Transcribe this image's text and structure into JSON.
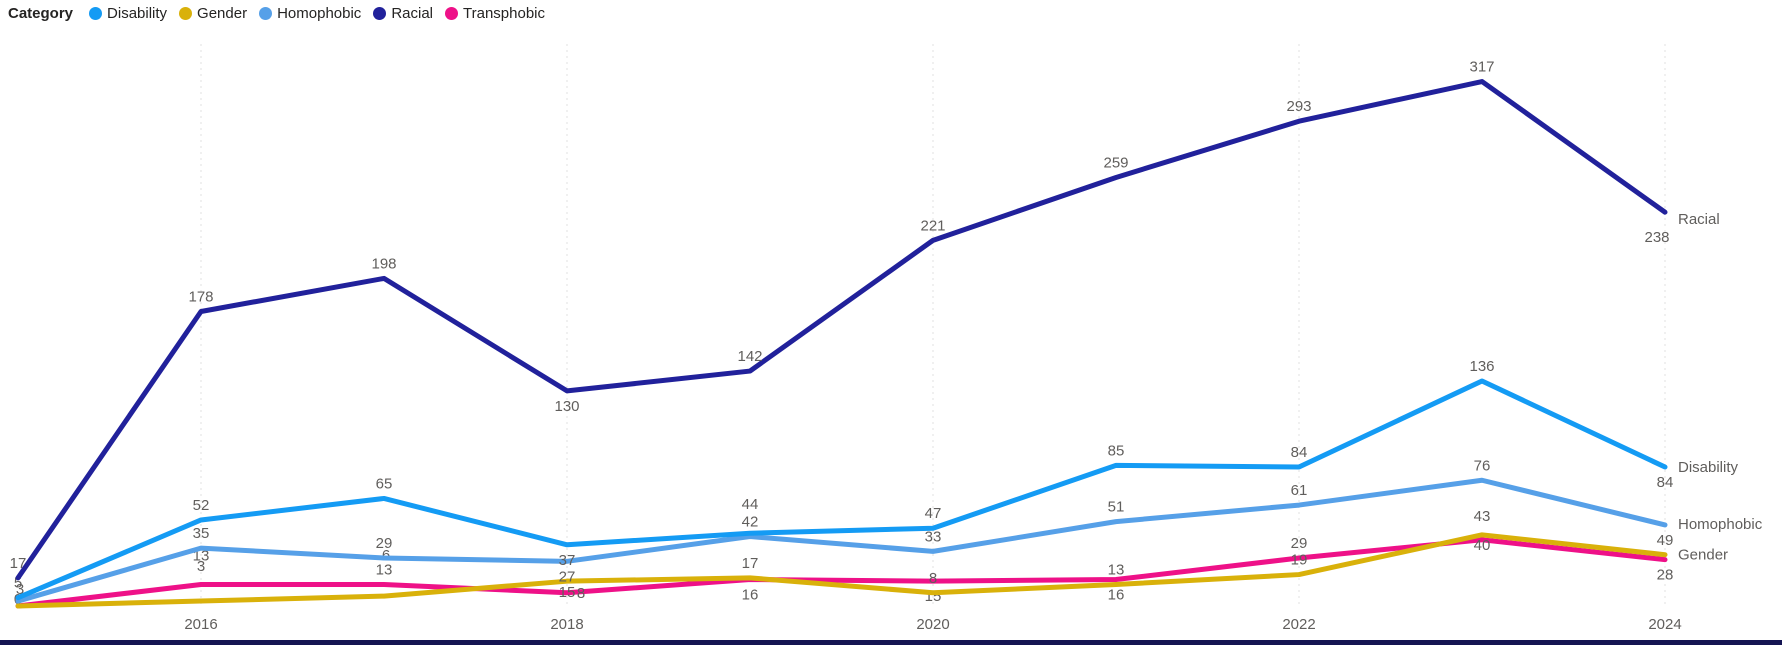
{
  "legend": {
    "title": "Category",
    "items": [
      {
        "label": "Disability",
        "color": "#149BF4"
      },
      {
        "label": "Gender",
        "color": "#D9B10A"
      },
      {
        "label": "Homophobic",
        "color": "#56A0E8"
      },
      {
        "label": "Racial",
        "color": "#21219B"
      },
      {
        "label": "Transphobic",
        "color": "#EE1188"
      }
    ]
  },
  "x_axis": {
    "tick_labels": [
      "2016",
      "2018",
      "2020",
      "2022",
      "2024"
    ],
    "tick_years": [
      2016,
      2018,
      2020,
      2022,
      2024
    ]
  },
  "chart_data": {
    "type": "line",
    "title": "",
    "xlabel": "",
    "ylabel": "",
    "x": [
      2015,
      2016,
      2017,
      2018,
      2019,
      2020,
      2021,
      2022,
      2023,
      2024
    ],
    "ylim": [
      0,
      330
    ],
    "grid": "vertical dotted gridlines at even-year ticks only",
    "legend_position": "top-left",
    "series": [
      {
        "name": "Transphobic",
        "color": "#EE1188",
        "values": [
          0,
          13,
          13,
          8,
          16,
          15,
          16,
          29,
          40,
          28
        ],
        "label_show": [
          true,
          true,
          true,
          true,
          true,
          true,
          true,
          true,
          true,
          true
        ],
        "label_side": [
          "a",
          "a",
          "a",
          "b",
          "b",
          "b",
          "b",
          "a",
          "b",
          "b"
        ],
        "label_offsets": {
          "0": [
            0,
            8
          ],
          "1": [
            0,
            -14
          ],
          "3": [
            14,
            -15
          ],
          "8": [
            0,
            -10
          ]
        },
        "end_label": null
      },
      {
        "name": "Gender",
        "color": "#D9B10A",
        "values": [
          0,
          3,
          6,
          15,
          17,
          8,
          13,
          19,
          43,
          31
        ],
        "label_show": [
          false,
          true,
          true,
          true,
          true,
          true,
          true,
          true,
          true,
          false
        ],
        "label_side": [
          "a",
          "a",
          "a",
          "b",
          "a",
          "a",
          "a",
          "a",
          "a",
          "a"
        ],
        "label_offsets": {
          "1": [
            0,
            -20
          ],
          "2": [
            2,
            -26
          ],
          "3": [
            0,
            -4
          ],
          "8": [
            0,
            -4
          ]
        },
        "end_label": "Gender",
        "end_label_dy": 5
      },
      {
        "name": "Homophobic",
        "color": "#56A0E8",
        "values": [
          3,
          35,
          29,
          27,
          42,
          33,
          51,
          61,
          76,
          49
        ],
        "label_show": [
          true,
          true,
          true,
          true,
          true,
          true,
          true,
          true,
          true,
          true
        ],
        "label_side": [
          "a",
          "a",
          "a",
          "b",
          "a",
          "a",
          "a",
          "a",
          "a",
          "b"
        ],
        "label_offsets": {
          "0": [
            2,
            3
          ]
        },
        "end_label": "Homophobic",
        "end_label_dy": 4
      },
      {
        "name": "Disability",
        "color": "#149BF4",
        "values": [
          5,
          52,
          65,
          37,
          44,
          47,
          85,
          84,
          136,
          84
        ],
        "label_show": [
          true,
          true,
          true,
          true,
          true,
          true,
          true,
          true,
          true,
          true
        ],
        "label_side": [
          "a",
          "a",
          "a",
          "b",
          "a",
          "a",
          "a",
          "a",
          "a",
          "b"
        ],
        "label_offsets": {
          "4": [
            0,
            -14
          ]
        },
        "end_label": "Disability",
        "end_label_dy": 5
      },
      {
        "name": "Racial",
        "color": "#21219B",
        "values": [
          17,
          178,
          198,
          130,
          142,
          221,
          259,
          293,
          317,
          238
        ],
        "label_show": [
          true,
          true,
          true,
          true,
          true,
          true,
          true,
          true,
          true,
          true
        ],
        "label_side": [
          "a",
          "a",
          "a",
          "b",
          "a",
          "a",
          "a",
          "a",
          "a",
          "b"
        ],
        "label_offsets": {
          "9": [
            -8,
            10
          ]
        },
        "end_label": "Racial",
        "end_label_dy": 12
      }
    ]
  },
  "colors": {
    "label_text": "#605E5C",
    "axis_text": "#605E5C",
    "end_label_text": "#605E5C",
    "gridline": "#E2E2E2",
    "bottom_bar": "#141452",
    "background": "#FFFFFF"
  }
}
